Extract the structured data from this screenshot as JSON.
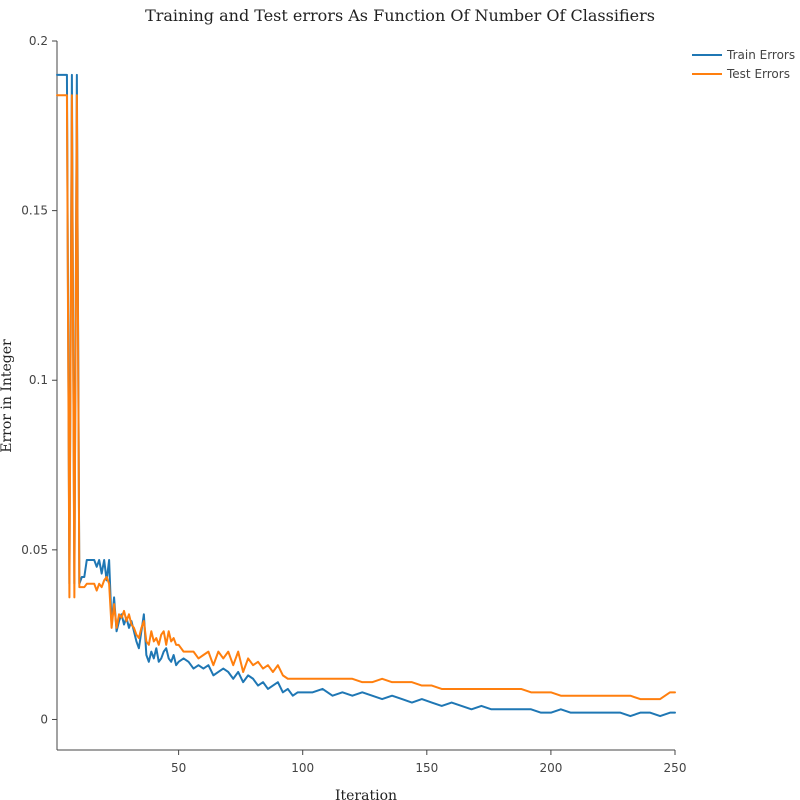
{
  "chart_data": {
    "type": "line",
    "title": "Training and Test errors As Function Of Number Of Classifiers",
    "xlabel": "Iteration",
    "ylabel": "Error in Integer",
    "xlim": [
      1,
      250
    ],
    "ylim": [
      -0.009,
      0.2
    ],
    "x_ticks": [
      {
        "value": 50,
        "label": "50"
      },
      {
        "value": 100,
        "label": "100"
      },
      {
        "value": 150,
        "label": "150"
      },
      {
        "value": 200,
        "label": "200"
      },
      {
        "value": 250,
        "label": "250"
      }
    ],
    "y_ticks": [
      {
        "value": 0,
        "label": "0"
      },
      {
        "value": 0.05,
        "label": "0.05"
      },
      {
        "value": 0.1,
        "label": "0.1"
      },
      {
        "value": 0.15,
        "label": "0.15"
      },
      {
        "value": 0.2,
        "label": "0.2"
      }
    ],
    "grid": false,
    "legend_position": "top-right",
    "series": [
      {
        "name": "Train Errors",
        "color": "#1f77b4",
        "x": [
          1,
          2,
          3,
          4,
          5,
          6,
          7,
          8,
          9,
          10,
          11,
          12,
          13,
          14,
          15,
          16,
          17,
          18,
          19,
          20,
          21,
          22,
          23,
          24,
          25,
          26,
          27,
          28,
          29,
          30,
          31,
          32,
          33,
          34,
          35,
          36,
          37,
          38,
          39,
          40,
          41,
          42,
          43,
          44,
          45,
          46,
          47,
          48,
          49,
          50,
          52,
          54,
          56,
          58,
          60,
          62,
          64,
          66,
          68,
          70,
          72,
          74,
          76,
          78,
          80,
          82,
          84,
          86,
          88,
          90,
          92,
          94,
          96,
          98,
          100,
          104,
          108,
          112,
          116,
          120,
          124,
          128,
          132,
          136,
          140,
          144,
          148,
          152,
          156,
          160,
          164,
          168,
          172,
          176,
          180,
          184,
          188,
          192,
          196,
          200,
          204,
          208,
          212,
          216,
          220,
          224,
          228,
          232,
          236,
          240,
          244,
          248,
          250
        ],
        "y": [
          0.19,
          0.19,
          0.19,
          0.19,
          0.19,
          0.04,
          0.19,
          0.04,
          0.19,
          0.04,
          0.042,
          0.042,
          0.047,
          0.047,
          0.047,
          0.047,
          0.045,
          0.047,
          0.043,
          0.047,
          0.041,
          0.047,
          0.028,
          0.036,
          0.026,
          0.029,
          0.031,
          0.028,
          0.03,
          0.027,
          0.029,
          0.026,
          0.023,
          0.021,
          0.026,
          0.031,
          0.019,
          0.017,
          0.02,
          0.018,
          0.021,
          0.017,
          0.018,
          0.02,
          0.021,
          0.018,
          0.017,
          0.019,
          0.016,
          0.017,
          0.018,
          0.017,
          0.015,
          0.016,
          0.015,
          0.016,
          0.013,
          0.014,
          0.015,
          0.014,
          0.012,
          0.014,
          0.011,
          0.013,
          0.012,
          0.01,
          0.011,
          0.009,
          0.01,
          0.011,
          0.008,
          0.009,
          0.007,
          0.008,
          0.008,
          0.008,
          0.009,
          0.007,
          0.008,
          0.007,
          0.008,
          0.007,
          0.006,
          0.007,
          0.006,
          0.005,
          0.006,
          0.005,
          0.004,
          0.005,
          0.004,
          0.003,
          0.004,
          0.003,
          0.003,
          0.003,
          0.003,
          0.003,
          0.002,
          0.002,
          0.003,
          0.002,
          0.002,
          0.002,
          0.002,
          0.002,
          0.002,
          0.001,
          0.002,
          0.002,
          0.001,
          0.002,
          0.002
        ]
      },
      {
        "name": "Test Errors",
        "color": "#ff7f0e",
        "x": [
          1,
          2,
          3,
          4,
          5,
          6,
          7,
          8,
          9,
          10,
          11,
          12,
          13,
          14,
          15,
          16,
          17,
          18,
          19,
          20,
          21,
          22,
          23,
          24,
          25,
          26,
          27,
          28,
          29,
          30,
          31,
          32,
          33,
          34,
          35,
          36,
          37,
          38,
          39,
          40,
          41,
          42,
          43,
          44,
          45,
          46,
          47,
          48,
          49,
          50,
          52,
          54,
          56,
          58,
          60,
          62,
          64,
          66,
          68,
          70,
          72,
          74,
          76,
          78,
          80,
          82,
          84,
          86,
          88,
          90,
          92,
          94,
          96,
          98,
          100,
          104,
          108,
          112,
          116,
          120,
          124,
          128,
          132,
          136,
          140,
          144,
          148,
          152,
          156,
          160,
          164,
          168,
          172,
          176,
          180,
          184,
          188,
          192,
          196,
          200,
          204,
          208,
          212,
          216,
          220,
          224,
          228,
          232,
          236,
          240,
          244,
          248,
          250
        ],
        "y": [
          0.184,
          0.184,
          0.184,
          0.184,
          0.184,
          0.036,
          0.184,
          0.036,
          0.184,
          0.039,
          0.039,
          0.039,
          0.04,
          0.04,
          0.04,
          0.04,
          0.038,
          0.04,
          0.039,
          0.041,
          0.042,
          0.04,
          0.027,
          0.034,
          0.027,
          0.031,
          0.03,
          0.032,
          0.029,
          0.031,
          0.028,
          0.027,
          0.025,
          0.024,
          0.027,
          0.029,
          0.023,
          0.022,
          0.026,
          0.023,
          0.024,
          0.022,
          0.025,
          0.026,
          0.022,
          0.026,
          0.023,
          0.024,
          0.022,
          0.022,
          0.02,
          0.02,
          0.02,
          0.018,
          0.019,
          0.02,
          0.016,
          0.02,
          0.018,
          0.02,
          0.016,
          0.02,
          0.014,
          0.018,
          0.016,
          0.017,
          0.015,
          0.016,
          0.014,
          0.016,
          0.013,
          0.012,
          0.012,
          0.012,
          0.012,
          0.012,
          0.012,
          0.012,
          0.012,
          0.012,
          0.011,
          0.011,
          0.012,
          0.011,
          0.011,
          0.011,
          0.01,
          0.01,
          0.009,
          0.009,
          0.009,
          0.009,
          0.009,
          0.009,
          0.009,
          0.009,
          0.009,
          0.008,
          0.008,
          0.008,
          0.007,
          0.007,
          0.007,
          0.007,
          0.007,
          0.007,
          0.007,
          0.007,
          0.006,
          0.006,
          0.006,
          0.008,
          0.008
        ]
      }
    ]
  }
}
